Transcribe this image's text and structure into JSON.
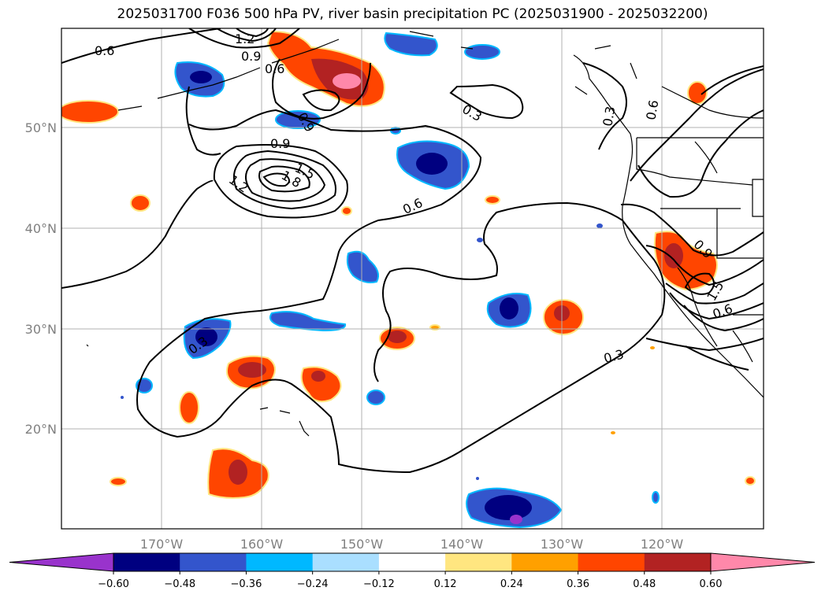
{
  "title": "2025031700 F036 500 hPa PV, river basin precipitation PC (2025031900 - 2025032200)",
  "lat_labels": [
    "50°N",
    "40°N",
    "30°N",
    "20°N"
  ],
  "lon_labels": [
    "170°W",
    "160°W",
    "150°W",
    "140°W",
    "130°W",
    "120°W"
  ],
  "contour_labels": {
    "c06_nw": "0.6",
    "c12_top": "1.2",
    "c09_top": "0.9",
    "c06_top": "0.6",
    "c09_mid": "0.9",
    "c09_b": "0.9",
    "c15": "1.5",
    "c18": "1.8",
    "c12_b": "1.2",
    "c06_c": "0.6",
    "c03_ne": "0.3",
    "c03_bc": "0.3",
    "c06_ne": "0.6",
    "c03_w": "0.3",
    "c03_s": "0.3",
    "c09_e": "0.9",
    "c15_e": "1.5",
    "c06_e": "0.6"
  },
  "colorbar": {
    "ticks": [
      "−0.60",
      "−0.48",
      "−0.36",
      "−0.24",
      "−0.12",
      "0.12",
      "0.24",
      "0.36",
      "0.48",
      "0.60"
    ],
    "colors": [
      "#9933cc",
      "#000080",
      "#3355cc",
      "#00b8ff",
      "#aadfff",
      "#ffffff",
      "#ffe680",
      "#ffa000",
      "#ff4500",
      "#b22222",
      "#ff88aa"
    ]
  }
}
